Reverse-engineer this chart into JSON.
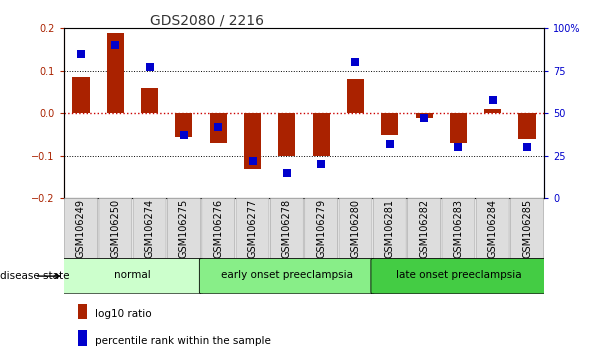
{
  "title": "GDS2080 / 2216",
  "samples": [
    "GSM106249",
    "GSM106250",
    "GSM106274",
    "GSM106275",
    "GSM106276",
    "GSM106277",
    "GSM106278",
    "GSM106279",
    "GSM106280",
    "GSM106281",
    "GSM106282",
    "GSM106283",
    "GSM106284",
    "GSM106285"
  ],
  "log10_ratio": [
    0.085,
    0.19,
    0.06,
    -0.055,
    -0.07,
    -0.13,
    -0.1,
    -0.1,
    0.08,
    -0.05,
    -0.01,
    -0.07,
    0.01,
    -0.06
  ],
  "percentile_rank": [
    85,
    90,
    77,
    37,
    42,
    22,
    15,
    20,
    80,
    32,
    47,
    30,
    58,
    30
  ],
  "groups": [
    {
      "label": "normal",
      "start": 0,
      "end": 3,
      "color": "#ccffcc"
    },
    {
      "label": "early onset preeclampsia",
      "start": 4,
      "end": 8,
      "color": "#88ee88"
    },
    {
      "label": "late onset preeclampsia",
      "start": 9,
      "end": 13,
      "color": "#44cc44"
    }
  ],
  "ylim_left": [
    -0.2,
    0.2
  ],
  "ylim_right": [
    0,
    100
  ],
  "yticks_left": [
    -0.2,
    -0.1,
    0,
    0.1,
    0.2
  ],
  "yticks_right": [
    0,
    25,
    50,
    75,
    100
  ],
  "bar_color": "#aa2200",
  "dot_color": "#0000cc",
  "zero_line_color": "#cc0000",
  "grid_color": "#000000",
  "disease_state_label": "disease state",
  "legend_log10": "log10 ratio",
  "legend_pct": "percentile rank within the sample",
  "bg_color": "#ffffff",
  "tick_label_fontsize": 7.0,
  "title_fontsize": 10,
  "label_fontsize": 8,
  "tick_box_color": "#dddddd",
  "tick_box_edge": "#aaaaaa"
}
